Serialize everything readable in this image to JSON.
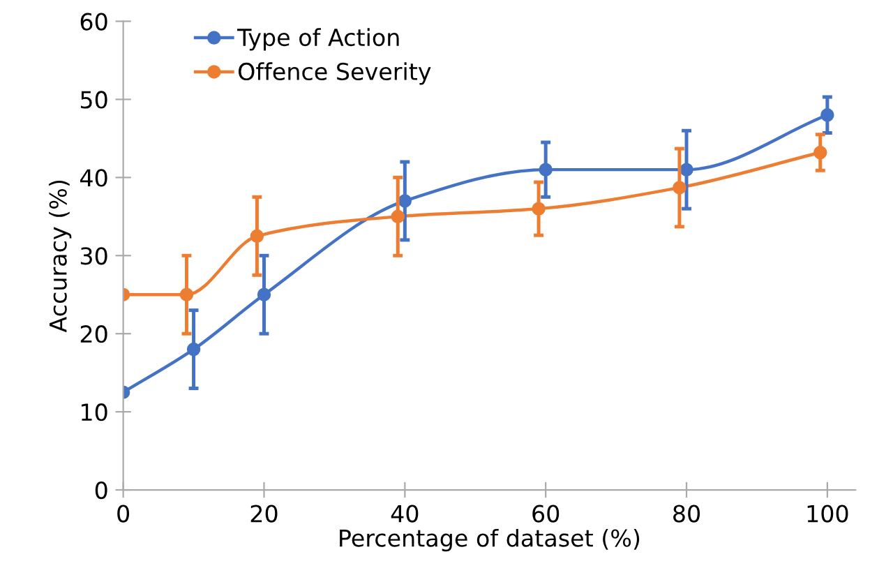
{
  "chart_data": {
    "type": "line",
    "xlabel": "Percentage of dataset (%)",
    "ylabel": "Accuracy (%)",
    "xlim": [
      0,
      104
    ],
    "xticks": [
      0,
      20,
      40,
      60,
      80,
      100
    ],
    "ylim": [
      0,
      60
    ],
    "yticks": [
      0,
      10,
      20,
      30,
      40,
      50,
      60
    ],
    "grid": false,
    "legend": "top left",
    "marker": "circle",
    "line_style": "solid",
    "series": [
      {
        "name": "Type of Action",
        "color": "#4472c4",
        "x": [
          0,
          10,
          20,
          40,
          60,
          80,
          100
        ],
        "values": [
          12.5,
          18,
          25,
          37,
          41,
          41,
          48
        ],
        "errors": [
          null,
          5,
          5,
          5,
          3.5,
          5,
          2.3
        ]
      },
      {
        "name": "Offence Severity",
        "color": "#ed7d31",
        "x": [
          0,
          9,
          19,
          39,
          59,
          79,
          99
        ],
        "values": [
          25,
          25,
          32.5,
          35,
          36,
          38.7,
          43.2
        ],
        "errors": [
          null,
          5,
          5,
          5,
          3.4,
          5,
          2.3
        ]
      }
    ]
  }
}
